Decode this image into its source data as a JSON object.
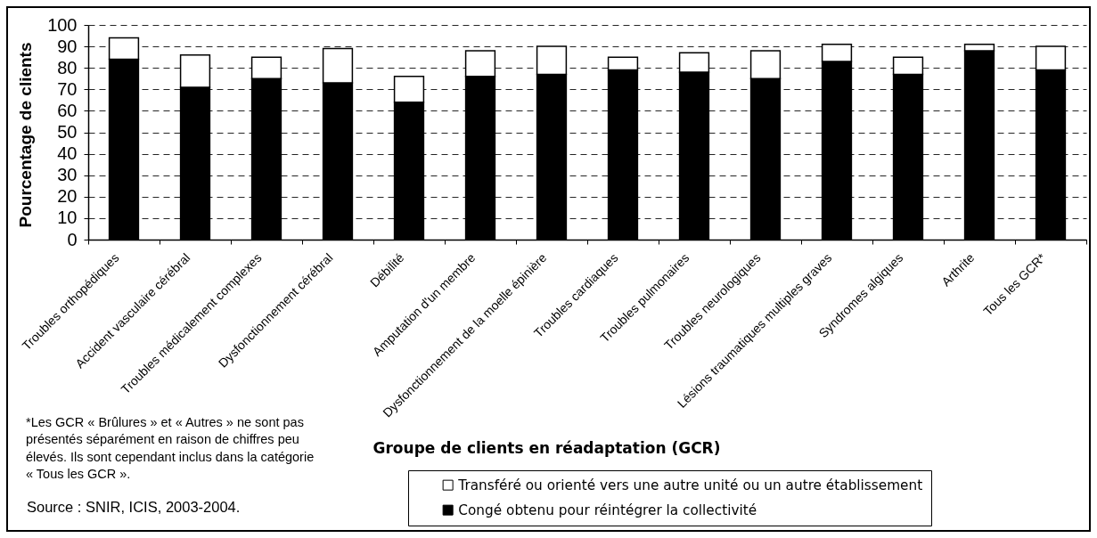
{
  "chart_data": {
    "type": "bar",
    "stacked": true,
    "categories": [
      "Troubles orthopédiques",
      "Accident vasculaire cérébral",
      "Troubles médicalement complexes",
      "Dysfonctionnement cérébral",
      "Débilité",
      "Amputation d'un membre",
      "Dysfonctionnement de la moelle épinière",
      "Troubles cardiaques",
      "Troubles pulmonaires",
      "Troubles neurologiques",
      "Lésions traumatiques multiples graves",
      "Syndromes algiques",
      "Arthrite",
      "Tous les GCR*"
    ],
    "series": [
      {
        "name": "Congé obtenu pour réintégrer la collectivité",
        "color": "#000000",
        "values": [
          84,
          71,
          75,
          73,
          64,
          76,
          77,
          79,
          78,
          75,
          83,
          77,
          88,
          79
        ]
      },
      {
        "name": "Transféré ou orienté vers une autre unité ou un autre établissement",
        "color": "#ffffff",
        "values": [
          10,
          15,
          10,
          16,
          12,
          12,
          13,
          6,
          9,
          13,
          8,
          8,
          3,
          11
        ]
      }
    ],
    "xlabel": "Groupe de clients en réadaptation (GCR)",
    "ylabel": "Pourcentage de clients",
    "ylim": [
      0,
      100
    ],
    "yticks": [
      0,
      10,
      20,
      30,
      40,
      50,
      60,
      70,
      80,
      90,
      100
    ],
    "grid": "y",
    "legend": "bottom",
    "annotations": [
      "*Les GCR « Brûlures » et « Autres » ne sont pas présentés séparément en raison de chiffres peu élevés. Ils sont cependant inclus dans la catégorie « Tous les GCR ».",
      "Source : SNIR, ICIS, 2003-2004."
    ]
  }
}
